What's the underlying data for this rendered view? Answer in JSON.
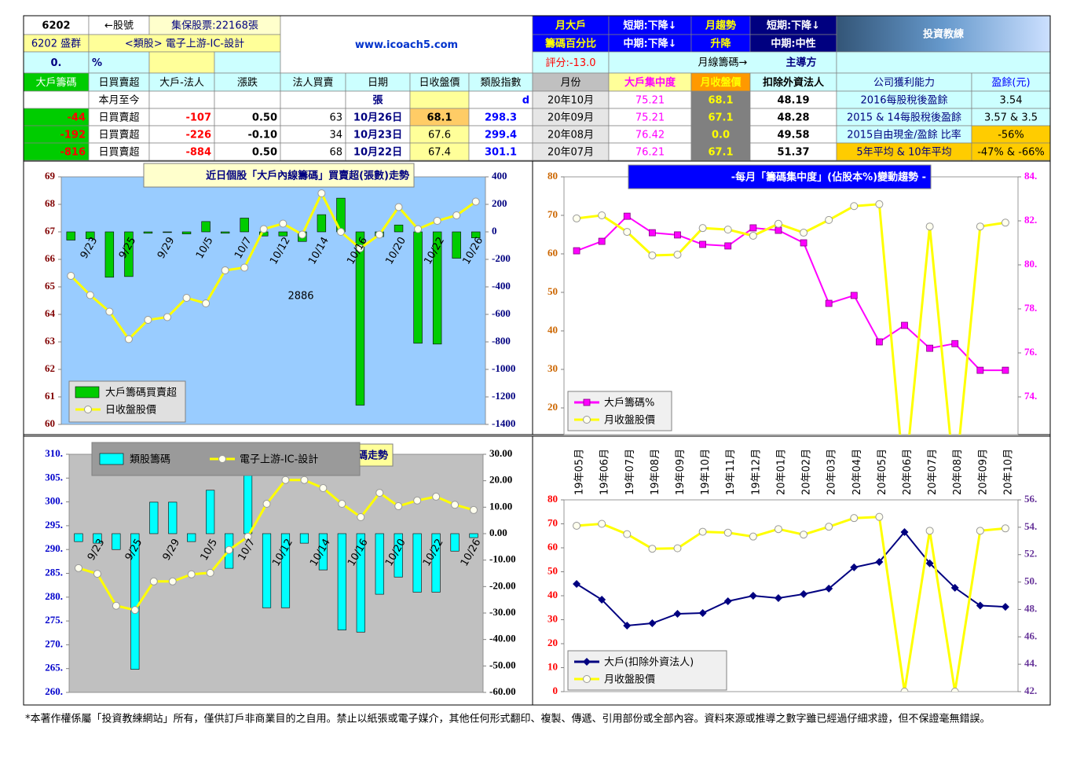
{
  "header": {
    "stock_code": "6202",
    "code_arrow": "←股號",
    "shares": "集保股票:22168張",
    "name": "6202 盛群",
    "sector": "<類股> 電子上游-IC-設計",
    "pct_value": "0.",
    "pct_unit": "%",
    "website": "www.icoach5.com",
    "monthly_big_holder": [
      "月大戶",
      "籌碼百分比"
    ],
    "big_holder_trend": [
      "短期:下降↓",
      "中期:下降↓"
    ],
    "monthly_trend": [
      "月趨勢",
      "升降"
    ],
    "trend": [
      "短期:下降↓",
      "中期:中性"
    ],
    "logo": "投資教練",
    "score": "評分:-13.0",
    "monthly_chip": "月線籌碼→",
    "leader": "主導方"
  },
  "table": {
    "rows": [
      [
        "大戶籌碼",
        "日買賣超",
        "大戶-法人",
        "漲跌",
        "法人買賣",
        "日期",
        "日收盤價",
        "類股指數",
        "月份",
        "大戶集中度",
        "月收盤價",
        "扣除外資法人",
        "公司獲利能力",
        "盈餘(元)"
      ],
      [
        null,
        "本月至今",
        null,
        null,
        null,
        "張",
        null,
        "d",
        "20年10月",
        "75.21",
        "68.1",
        "48.19",
        "2016每股稅後盈餘",
        "3.54"
      ],
      [
        "-44",
        "日買賣超",
        "-107",
        "0.50",
        "63",
        "10月26日",
        "68.1",
        "298.3",
        "20年09月",
        "75.21",
        "67.1",
        "48.28",
        "2015 & 14每股稅後盈餘",
        "3.57 & 3.5"
      ],
      [
        "-192",
        "日買賣超",
        "-226",
        "-0.10",
        "34",
        "10月23日",
        "67.6",
        "299.4",
        "20年08月",
        "76.42",
        "0.0",
        "49.58",
        "2015自由現金/盈餘 比率",
        "-56%"
      ],
      [
        "-816",
        "日買賣超",
        "-884",
        "0.50",
        "68",
        "10月22日",
        "67.4",
        "301.1",
        "20年07月",
        "76.21",
        "67.1",
        "51.37",
        "5年平均 & 10年平均",
        "-47% & -66%"
      ]
    ]
  },
  "chart_data": [
    {
      "type": "combo",
      "title": "近日個股「大戶內線籌碼」買賣超(張數)走勢",
      "annotation": "2886",
      "categories": [
        null,
        "9/23",
        null,
        "9/25",
        null,
        "9/29",
        null,
        "10/5",
        null,
        "10/7",
        null,
        "10/12",
        null,
        "10/14",
        null,
        "10/16",
        null,
        "10/20",
        null,
        "10/22",
        null,
        "10/26"
      ],
      "series": [
        {
          "name": "大戶籌碼買賣超",
          "type": "bar",
          "axis": "y2",
          "color": "#00cc00",
          "values": [
            -60,
            -50,
            -330,
            -325,
            -10,
            -5,
            -15,
            75,
            -10,
            100,
            -30,
            -30,
            -70,
            125,
            245,
            -1260,
            -35,
            50,
            -810,
            -816,
            -192,
            -44
          ]
        },
        {
          "name": "日收盤股價",
          "type": "line",
          "marker": "circle",
          "color": "#ffff00",
          "values": [
            65.4,
            64.7,
            64.1,
            63.1,
            63.8,
            63.9,
            64.6,
            64.4,
            65.6,
            65.7,
            67.1,
            67.3,
            66.9,
            68.4,
            67.0,
            66.4,
            66.9,
            67.9,
            67.1,
            67.4,
            67.6,
            68.1
          ]
        }
      ],
      "ylim": [
        60,
        69
      ],
      "yticks": [
        60,
        61,
        62,
        63,
        64,
        65,
        66,
        67,
        68,
        69
      ],
      "y2lim": [
        -1400,
        400
      ],
      "y2ticks": [
        -1400,
        -1200,
        -1000,
        -800,
        -600,
        -400,
        -200,
        0,
        200,
        400
      ],
      "legend": "lower left"
    },
    {
      "type": "line",
      "title": "-每月「籌碼集中度」(佔股本%)變動趨勢 -",
      "series": [
        {
          "name": "大戶籌碼%",
          "axis": "y2",
          "marker": "square",
          "color": "#ff00ff",
          "values": [
            80.64,
            81.07,
            82.21,
            81.46,
            81.36,
            80.93,
            80.86,
            81.68,
            81.57,
            81.0,
            78.25,
            78.61,
            76.5,
            77.25,
            76.21,
            76.42,
            75.21,
            75.21
          ]
        },
        {
          "name": "月收盤股價",
          "marker": "circle",
          "color": "#ffff00",
          "values": [
            69.2,
            70.0,
            65.7,
            59.6,
            59.8,
            66.7,
            66.3,
            64.7,
            67.8,
            65.5,
            68.8,
            72.4,
            72.9,
            0,
            67.1,
            0.0,
            67.1,
            68.1
          ]
        }
      ],
      "ylim": [
        10,
        80
      ],
      "yticks": [
        20,
        30,
        40,
        50,
        60,
        70,
        80
      ],
      "y2lim": [
        71.75,
        84
      ],
      "y2ticks": [
        {
          "value": 74,
          "label": "74."
        },
        {
          "value": 76,
          "label": "76."
        },
        {
          "value": 78,
          "label": "78."
        },
        {
          "value": 80,
          "label": "80."
        },
        {
          "value": 82,
          "label": "82."
        },
        {
          "value": 84,
          "label": "84."
        }
      ],
      "legend": "lower left"
    },
    {
      "type": "combo",
      "title": "類股籌碼走勢",
      "categories": [
        null,
        "9/23",
        null,
        "9/25",
        null,
        "9/29",
        null,
        "10/5",
        null,
        "10/7",
        null,
        "10/12",
        null,
        "10/14",
        null,
        "10/16",
        null,
        "10/20",
        null,
        "10/22",
        null,
        "10/26"
      ],
      "series": [
        {
          "name": "類股籌碼",
          "type": "bar",
          "axis": "y2",
          "color": "#00ffff",
          "values": [
            -3.0,
            -3.6,
            -6.0,
            -51.3,
            11.9,
            11.9,
            -3.0,
            16.4,
            -13.1,
            29.8,
            -28.0,
            -28.0,
            -3.6,
            -13.7,
            -36.4,
            -37.2,
            -22.9,
            -16.4,
            -22.1,
            -22.1,
            -6.6,
            -1.5
          ]
        },
        {
          "name": "電子上游-IC-設計",
          "type": "line",
          "marker": "circle",
          "color": "#ffff00",
          "values": [
            286.1,
            284.9,
            278.2,
            277.3,
            283.3,
            283.3,
            284.8,
            285.1,
            289.9,
            292.7,
            299.6,
            304.6,
            304.6,
            302.9,
            299.6,
            296.8,
            301.9,
            299.1,
            300.3,
            301.1,
            299.4,
            298.3
          ]
        }
      ],
      "ylim": [
        260,
        310
      ],
      "yticks": [
        {
          "value": 260,
          "label": "260."
        },
        {
          "value": 265,
          "label": "265."
        },
        {
          "value": 270,
          "label": "270."
        },
        {
          "value": 275,
          "label": "275."
        },
        {
          "value": 280,
          "label": "280."
        },
        {
          "value": 285,
          "label": "285."
        },
        {
          "value": 290,
          "label": "290."
        },
        {
          "value": 295,
          "label": "295."
        },
        {
          "value": 300,
          "label": "300."
        },
        {
          "value": 305,
          "label": "305."
        },
        {
          "value": 310,
          "label": "310."
        }
      ],
      "y2lim": [
        -60,
        30
      ],
      "y2ticks": [
        {
          "value": -60,
          "label": "-60.00"
        },
        {
          "value": -50,
          "label": "-50.00"
        },
        {
          "value": -40,
          "label": "-40.00"
        },
        {
          "value": -30,
          "label": "-30.00"
        },
        {
          "value": -20,
          "label": "-20.00"
        },
        {
          "value": -10,
          "label": "-10.00"
        },
        {
          "value": 0,
          "label": "0.00"
        },
        {
          "value": 10,
          "label": "10.00"
        },
        {
          "value": 20,
          "label": "20.00"
        },
        {
          "value": 30,
          "label": "30.00"
        }
      ],
      "legend": "upper left"
    },
    {
      "type": "line",
      "categories": [
        "19年05月",
        "19年06月",
        "19年07月",
        "19年08月",
        "19年09月",
        "19年10月",
        "19年11月",
        "19年12月",
        "20年01月",
        "20年02月",
        "20年03月",
        "20年04月",
        "20年05月",
        "20年06月",
        "20年07月",
        "20年08月",
        "20年09月",
        "20年10月"
      ],
      "series": [
        {
          "name": "大戶(扣除外資法人)",
          "axis": "y2",
          "marker": "diamond",
          "color": "#000080",
          "values": [
            49.86,
            48.71,
            46.82,
            46.99,
            47.68,
            47.74,
            48.6,
            49.0,
            48.83,
            49.12,
            49.52,
            51.07,
            51.47,
            53.65,
            51.37,
            49.58,
            48.28,
            48.19
          ]
        },
        {
          "name": "月收盤股價",
          "marker": "circle",
          "color": "#ffff00",
          "values": [
            69.2,
            70.0,
            65.7,
            59.6,
            59.8,
            66.7,
            66.3,
            64.7,
            67.8,
            65.5,
            68.8,
            72.4,
            72.9,
            0,
            67.1,
            0.0,
            67.1,
            68.1
          ]
        }
      ],
      "ylim": [
        0,
        80
      ],
      "yticks": [
        0,
        10,
        20,
        30,
        40,
        50,
        60,
        70,
        80
      ],
      "y2lim": [
        42,
        56
      ],
      "y2ticks": [
        {
          "value": 42,
          "label": "42."
        },
        {
          "value": 44,
          "label": "44."
        },
        {
          "value": 46,
          "label": "46."
        },
        {
          "value": 48,
          "label": "48."
        },
        {
          "value": 50,
          "label": "50."
        },
        {
          "value": 52,
          "label": "52."
        },
        {
          "value": 54,
          "label": "54."
        },
        {
          "value": 56,
          "label": "56."
        }
      ],
      "legend": "lower left"
    }
  ],
  "footer": "*本著作權係屬「投資教練網站」所有，僅供訂戶非商業目的之自用。禁止以紙張或電子媒介，其他任何形式翻印、複製、傳遞、引用部份或全部內容。資料來源或推導之數字雖已經過仔細求證，但不保證毫無錯誤。"
}
